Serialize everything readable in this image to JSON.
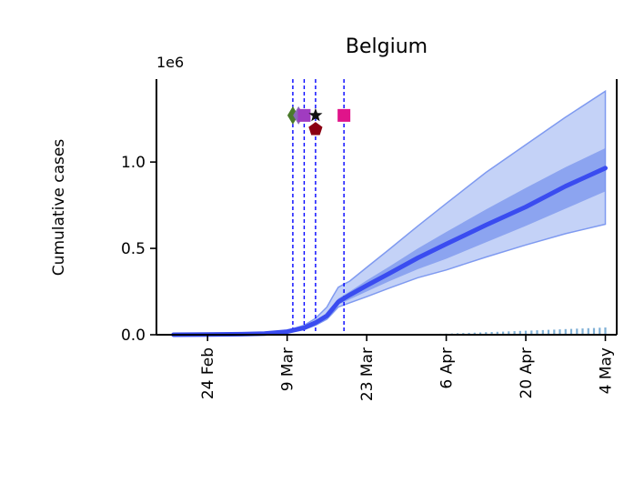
{
  "chart_data": {
    "type": "line",
    "title": "Belgium",
    "ylabel": "Cumulative cases",
    "xlabel": "",
    "y_scale_label": "1e6",
    "x_range": [
      "2020-02-15",
      "2020-05-06"
    ],
    "ylim": [
      0,
      1.48
    ],
    "grid": false,
    "x_ticks": [
      {
        "date": "2020-02-24",
        "label": "24 Feb"
      },
      {
        "date": "2020-03-09",
        "label": "9 Mar"
      },
      {
        "date": "2020-03-23",
        "label": "23 Mar"
      },
      {
        "date": "2020-04-06",
        "label": "6 Apr"
      },
      {
        "date": "2020-04-20",
        "label": "20 Apr"
      },
      {
        "date": "2020-05-04",
        "label": "4 May"
      }
    ],
    "y_ticks": [
      {
        "value": 0.0,
        "label": "0.0"
      },
      {
        "value": 0.5,
        "label": "0.5"
      },
      {
        "value": 1.0,
        "label": "1.0"
      }
    ],
    "model": {
      "color": "#3a4cf0",
      "x": [
        "2020-02-18",
        "2020-02-24",
        "2020-03-01",
        "2020-03-05",
        "2020-03-09",
        "2020-03-12",
        "2020-03-14",
        "2020-03-16",
        "2020-03-17",
        "2020-03-18",
        "2020-03-20",
        "2020-03-23",
        "2020-03-27",
        "2020-04-01",
        "2020-04-06",
        "2020-04-13",
        "2020-04-20",
        "2020-04-27",
        "2020-05-04"
      ],
      "median": [
        0.0,
        0.001,
        0.003,
        0.007,
        0.018,
        0.04,
        0.07,
        0.11,
        0.15,
        0.19,
        0.23,
        0.285,
        0.355,
        0.445,
        0.525,
        0.635,
        0.74,
        0.86,
        0.965
      ],
      "inner_low": [
        0.0,
        0.001,
        0.003,
        0.006,
        0.016,
        0.035,
        0.062,
        0.1,
        0.14,
        0.175,
        0.205,
        0.25,
        0.31,
        0.38,
        0.44,
        0.535,
        0.63,
        0.73,
        0.83
      ],
      "inner_high": [
        0.0,
        0.001,
        0.003,
        0.008,
        0.02,
        0.045,
        0.078,
        0.12,
        0.165,
        0.21,
        0.25,
        0.315,
        0.395,
        0.5,
        0.595,
        0.725,
        0.85,
        0.97,
        1.08
      ],
      "outer_low": [
        0.0,
        0.001,
        0.002,
        0.005,
        0.013,
        0.03,
        0.055,
        0.09,
        0.125,
        0.16,
        0.185,
        0.22,
        0.27,
        0.33,
        0.375,
        0.45,
        0.52,
        0.585,
        0.64
      ],
      "outer_high": [
        0.0,
        0.001,
        0.004,
        0.01,
        0.025,
        0.055,
        0.095,
        0.16,
        0.22,
        0.275,
        0.31,
        0.39,
        0.495,
        0.63,
        0.76,
        0.94,
        1.1,
        1.26,
        1.41
      ]
    },
    "observed": {
      "color": "#7fb0d6",
      "start": "2020-04-01",
      "end": "2020-05-04",
      "start_value": 0.002,
      "end_value": 0.042
    },
    "interventions": {
      "line_color": "#0000ff",
      "dates": [
        "2020-03-10",
        "2020-03-12",
        "2020-03-14",
        "2020-03-19"
      ],
      "markers": [
        {
          "date": "2020-03-10",
          "value": 1.27,
          "shape": "diamond",
          "color": "#4a7a2a"
        },
        {
          "date": "2020-03-11",
          "value": 1.27,
          "shape": "diamond",
          "color": "#8a6ab8"
        },
        {
          "date": "2020-03-12",
          "value": 1.27,
          "shape": "square",
          "color": "#a03cc0"
        },
        {
          "date": "2020-03-14",
          "value": 1.27,
          "shape": "star",
          "color": "#111111"
        },
        {
          "date": "2020-03-14",
          "value": 1.19,
          "shape": "pentagon",
          "color": "#8b0012"
        },
        {
          "date": "2020-03-19",
          "value": 1.27,
          "shape": "square",
          "color": "#e0148a"
        }
      ]
    }
  }
}
